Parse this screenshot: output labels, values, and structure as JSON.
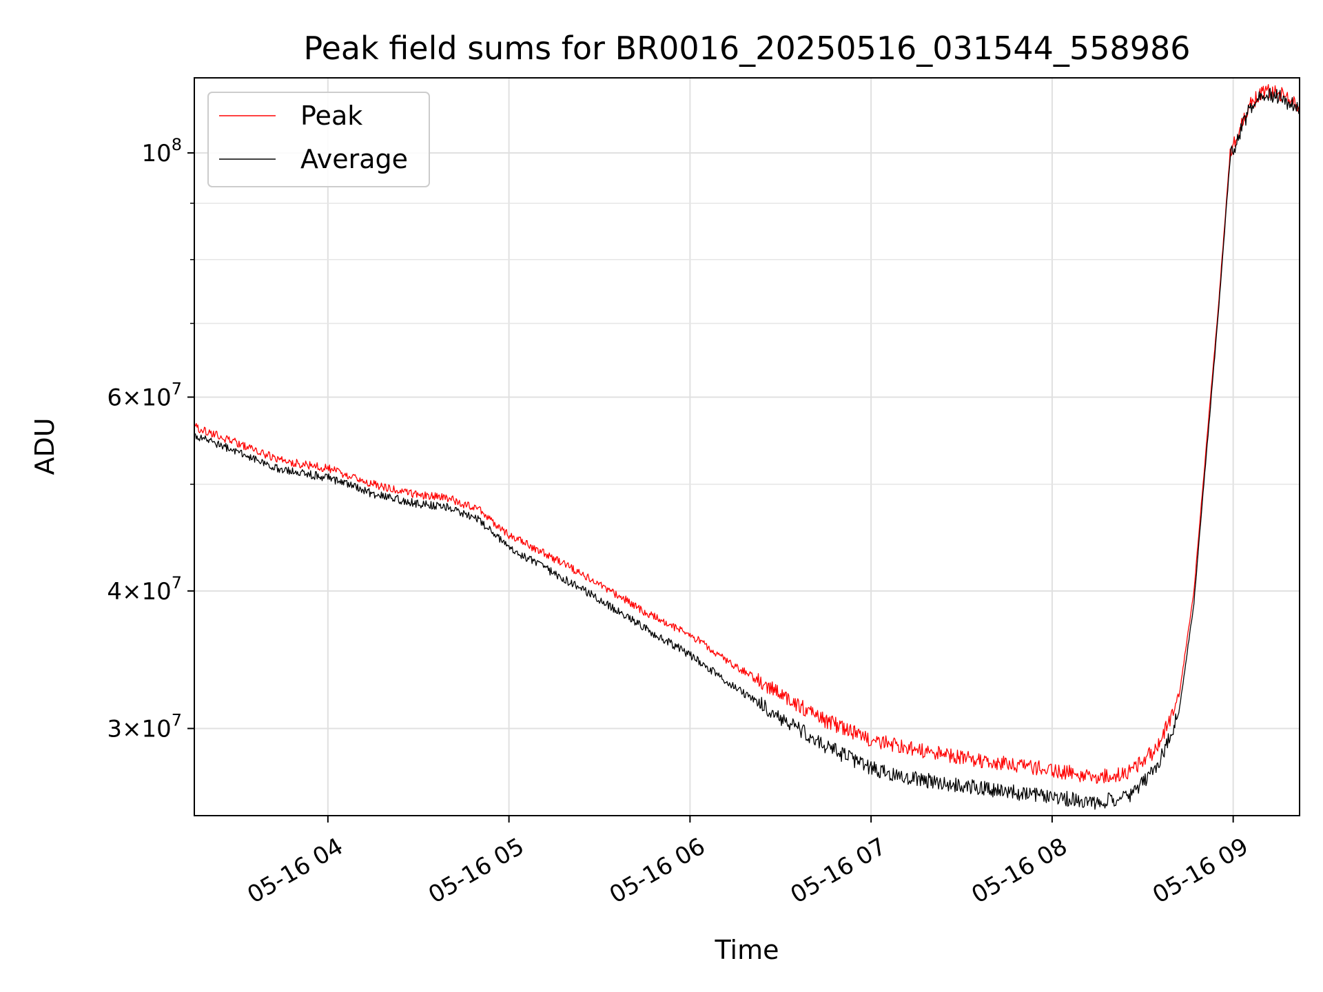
{
  "chart_data": {
    "type": "line",
    "title": "Peak field sums for BR0016_20250516_031544_558986",
    "xlabel": "Time",
    "ylabel": "ADU",
    "y_scale": "log",
    "ylim": [
      25000000,
      117000000
    ],
    "xlim": [
      "2025-05-16 03:15:44",
      "2025-05-16 09:22:00"
    ],
    "grid": true,
    "legend_position": "upper-left",
    "x_ticks": [
      {
        "t": "2025-05-16 04:00",
        "label": "05-16 04"
      },
      {
        "t": "2025-05-16 05:00",
        "label": "05-16 05"
      },
      {
        "t": "2025-05-16 06:00",
        "label": "05-16 06"
      },
      {
        "t": "2025-05-16 07:00",
        "label": "05-16 07"
      },
      {
        "t": "2025-05-16 08:00",
        "label": "05-16 08"
      },
      {
        "t": "2025-05-16 09:00",
        "label": "05-16 09"
      }
    ],
    "y_ticks": [
      {
        "value": 30000000,
        "mantissa": "3",
        "exp": "7",
        "label": "3×10^7"
      },
      {
        "value": 40000000,
        "mantissa": "4",
        "exp": "7",
        "label": "4×10^7"
      },
      {
        "value": 60000000,
        "mantissa": "6",
        "exp": "7",
        "label": "6×10^7"
      },
      {
        "value": 100000000,
        "mantissa": "",
        "exp": "8",
        "label": "10^8"
      }
    ],
    "y_minor_ticks": [
      50000000,
      70000000,
      80000000,
      90000000
    ],
    "series": [
      {
        "name": "Peak",
        "color": "#ff0000",
        "points": [
          [
            "2025-05-16 03:15",
            56500000
          ],
          [
            "2025-05-16 03:30",
            54500000
          ],
          [
            "2025-05-16 03:45",
            52500000
          ],
          [
            "2025-05-16 04:00",
            51700000
          ],
          [
            "2025-05-16 04:15",
            50000000
          ],
          [
            "2025-05-16 04:30",
            48900000
          ],
          [
            "2025-05-16 04:40",
            48600000
          ],
          [
            "2025-05-16 04:50",
            47400000
          ],
          [
            "2025-05-16 05:00",
            45000000
          ],
          [
            "2025-05-16 05:15",
            42800000
          ],
          [
            "2025-05-16 05:30",
            40600000
          ],
          [
            "2025-05-16 05:45",
            38300000
          ],
          [
            "2025-05-16 06:00",
            36500000
          ],
          [
            "2025-05-16 06:15",
            34200000
          ],
          [
            "2025-05-16 06:30",
            32200000
          ],
          [
            "2025-05-16 06:45",
            30500000
          ],
          [
            "2025-05-16 07:00",
            29300000
          ],
          [
            "2025-05-16 07:15",
            28700000
          ],
          [
            "2025-05-16 07:30",
            28200000
          ],
          [
            "2025-05-16 07:45",
            27900000
          ],
          [
            "2025-05-16 08:00",
            27500000
          ],
          [
            "2025-05-16 08:15",
            27100000
          ],
          [
            "2025-05-16 08:25",
            27300000
          ],
          [
            "2025-05-16 08:35",
            28800000
          ],
          [
            "2025-05-16 08:42",
            32000000
          ],
          [
            "2025-05-16 08:47",
            40000000
          ],
          [
            "2025-05-16 08:50",
            50000000
          ],
          [
            "2025-05-16 08:55",
            72000000
          ],
          [
            "2025-05-16 08:59",
            100000000
          ],
          [
            "2025-05-16 09:05",
            110000000
          ],
          [
            "2025-05-16 09:10",
            114000000
          ],
          [
            "2025-05-16 09:15",
            113500000
          ],
          [
            "2025-05-16 09:22",
            110500000
          ]
        ]
      },
      {
        "name": "Average",
        "color": "#000000",
        "points": [
          [
            "2025-05-16 03:15",
            55500000
          ],
          [
            "2025-05-16 03:30",
            53500000
          ],
          [
            "2025-05-16 03:45",
            51500000
          ],
          [
            "2025-05-16 04:00",
            50700000
          ],
          [
            "2025-05-16 04:15",
            49000000
          ],
          [
            "2025-05-16 04:30",
            48000000
          ],
          [
            "2025-05-16 04:40",
            47700000
          ],
          [
            "2025-05-16 04:50",
            46400000
          ],
          [
            "2025-05-16 05:00",
            43800000
          ],
          [
            "2025-05-16 05:15",
            41500000
          ],
          [
            "2025-05-16 05:30",
            39300000
          ],
          [
            "2025-05-16 05:45",
            37000000
          ],
          [
            "2025-05-16 06:00",
            35000000
          ],
          [
            "2025-05-16 06:15",
            32700000
          ],
          [
            "2025-05-16 06:30",
            30700000
          ],
          [
            "2025-05-16 06:45",
            28900000
          ],
          [
            "2025-05-16 07:00",
            27600000
          ],
          [
            "2025-05-16 07:15",
            27000000
          ],
          [
            "2025-05-16 07:30",
            26600000
          ],
          [
            "2025-05-16 07:45",
            26300000
          ],
          [
            "2025-05-16 08:00",
            26000000
          ],
          [
            "2025-05-16 08:15",
            25700000
          ],
          [
            "2025-05-16 08:25",
            26000000
          ],
          [
            "2025-05-16 08:35",
            27700000
          ],
          [
            "2025-05-16 08:42",
            31000000
          ],
          [
            "2025-05-16 08:47",
            39000000
          ],
          [
            "2025-05-16 08:50",
            49000000
          ],
          [
            "2025-05-16 08:55",
            71000000
          ],
          [
            "2025-05-16 08:59",
            99000000
          ],
          [
            "2025-05-16 09:05",
            109000000
          ],
          [
            "2025-05-16 09:10",
            113000000
          ],
          [
            "2025-05-16 09:15",
            112500000
          ],
          [
            "2025-05-16 09:22",
            109500000
          ]
        ]
      }
    ]
  }
}
